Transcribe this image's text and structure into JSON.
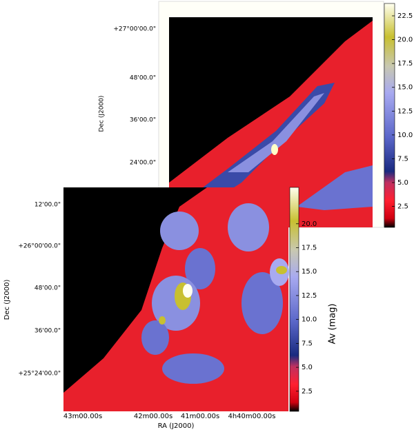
{
  "back_figure": {
    "ylabel": "Dec (J2000)",
    "yticks": [
      "+27°00'00.0\"",
      "48'00.0\"",
      "36'00.0\"",
      "24'00.0\""
    ],
    "colorbar": {
      "clim": [
        0.3,
        23.8
      ],
      "ticks": [
        2.5,
        {
          "value": 5,
          "label": "5.0"
        },
        7.5,
        {
          "value": 10,
          "label": "10.0"
        },
        12.5,
        {
          "value": 15,
          "label": "15.0"
        },
        17.5,
        {
          "value": 20,
          "label": "20.0"
        },
        22.5
      ]
    }
  },
  "front_figure": {
    "ylabel": "Dec (J2000)",
    "xlabel": "RA (J2000)",
    "yticks": [
      "12'00.0\"",
      "+26°00'00.0\"",
      "48'00.0\"",
      "36'00.0\"",
      "+25°24'00.0\""
    ],
    "xticks": [
      "43m00.00s",
      "42m00.00s",
      "41m00.00s",
      "4h40m00.00s"
    ],
    "colorbar": {
      "label": "Av (mag)",
      "clim": [
        0.4,
        23.8
      ],
      "ticks": [
        2.5,
        {
          "value": 5,
          "label": "5.0"
        },
        7.5,
        {
          "value": 10,
          "label": "10.0"
        },
        12.5,
        {
          "value": 15,
          "label": "15.0"
        },
        17.5,
        {
          "value": 20,
          "label": "20.0"
        }
      ]
    }
  }
}
